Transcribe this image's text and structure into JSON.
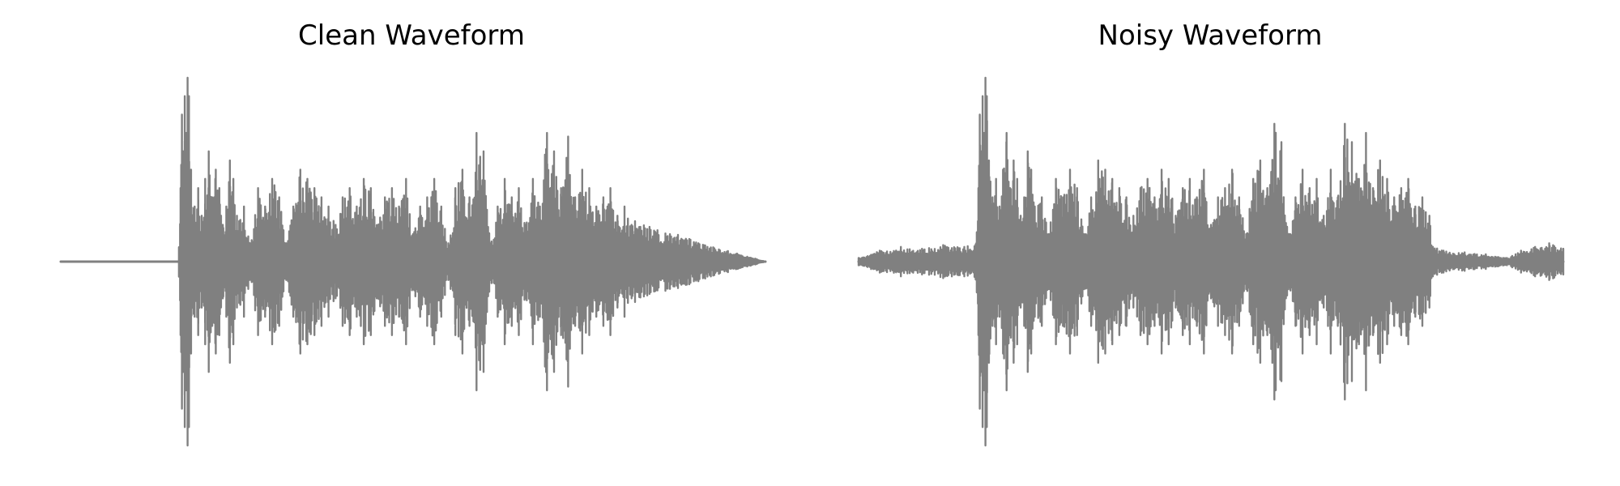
{
  "chart_data": [
    {
      "type": "line",
      "title": "Clean Waveform",
      "xlabel": "",
      "ylabel": "",
      "ylim": [
        -1.0,
        1.0
      ],
      "grid": false,
      "axes_visible": false,
      "color": "#808080",
      "series": [
        {
          "x": [
            0.0,
            0.167,
            0.17,
            0.172,
            0.174,
            0.176,
            0.178,
            0.18,
            0.182,
            0.185,
            0.19,
            0.195,
            0.2,
            0.205,
            0.21,
            0.215,
            0.22,
            0.225,
            0.23,
            0.235,
            0.24,
            0.245,
            0.25,
            0.26,
            0.27,
            0.28,
            0.29,
            0.3,
            0.31,
            0.32,
            0.33,
            0.34,
            0.35,
            0.36,
            0.37,
            0.38,
            0.39,
            0.4,
            0.41,
            0.42,
            0.43,
            0.44,
            0.45,
            0.46,
            0.47,
            0.48,
            0.49,
            0.5,
            0.51,
            0.52,
            0.53,
            0.54,
            0.55,
            0.56,
            0.57,
            0.58,
            0.59,
            0.6,
            0.61,
            0.62,
            0.63,
            0.64,
            0.65,
            0.66,
            0.67,
            0.68,
            0.69,
            0.7,
            0.71,
            0.72,
            0.73,
            0.74,
            0.75,
            0.76,
            0.77,
            0.78,
            0.79,
            0.8,
            0.81,
            0.815,
            1.0
          ],
          "envelope": [
            0.0,
            0.0,
            0.4,
            0.8,
            0.6,
            0.9,
            0.7,
            1.0,
            0.9,
            0.5,
            0.3,
            0.4,
            0.25,
            0.45,
            0.6,
            0.35,
            0.5,
            0.4,
            0.2,
            0.3,
            0.55,
            0.45,
            0.25,
            0.3,
            0.1,
            0.4,
            0.3,
            0.45,
            0.35,
            0.1,
            0.3,
            0.5,
            0.45,
            0.4,
            0.35,
            0.3,
            0.2,
            0.35,
            0.4,
            0.3,
            0.45,
            0.4,
            0.2,
            0.35,
            0.4,
            0.3,
            0.45,
            0.15,
            0.3,
            0.35,
            0.45,
            0.3,
            0.1,
            0.4,
            0.5,
            0.35,
            0.7,
            0.6,
            0.1,
            0.3,
            0.45,
            0.35,
            0.4,
            0.2,
            0.45,
            0.3,
            0.7,
            0.6,
            0.4,
            0.68,
            0.35,
            0.5,
            0.4,
            0.3,
            0.35,
            0.4,
            0.25,
            0.3,
            0.2,
            0.22,
            0.0
          ]
        }
      ]
    },
    {
      "type": "line",
      "title": "Noisy Waveform",
      "xlabel": "",
      "ylabel": "",
      "ylim": [
        -1.0,
        1.0
      ],
      "grid": false,
      "axes_visible": false,
      "color": "#808080",
      "series": [
        {
          "x": [
            0.0,
            0.03,
            0.06,
            0.09,
            0.12,
            0.15,
            0.167,
            0.17,
            0.172,
            0.174,
            0.176,
            0.178,
            0.18,
            0.182,
            0.185,
            0.19,
            0.195,
            0.2,
            0.205,
            0.21,
            0.215,
            0.22,
            0.225,
            0.23,
            0.235,
            0.24,
            0.245,
            0.25,
            0.26,
            0.27,
            0.28,
            0.29,
            0.3,
            0.31,
            0.32,
            0.33,
            0.34,
            0.35,
            0.36,
            0.37,
            0.38,
            0.39,
            0.4,
            0.41,
            0.42,
            0.43,
            0.44,
            0.45,
            0.46,
            0.47,
            0.48,
            0.49,
            0.5,
            0.51,
            0.52,
            0.53,
            0.54,
            0.55,
            0.56,
            0.57,
            0.58,
            0.59,
            0.6,
            0.61,
            0.62,
            0.63,
            0.64,
            0.65,
            0.66,
            0.67,
            0.68,
            0.69,
            0.7,
            0.71,
            0.72,
            0.73,
            0.74,
            0.75,
            0.76,
            0.77,
            0.78,
            0.79,
            0.8,
            0.81,
            0.815,
            0.83,
            0.86,
            0.89,
            0.92,
            0.94,
            0.96,
            0.98,
            1.0
          ],
          "envelope": [
            0.02,
            0.06,
            0.08,
            0.07,
            0.09,
            0.08,
            0.1,
            0.4,
            0.8,
            0.6,
            0.9,
            0.7,
            1.0,
            0.9,
            0.55,
            0.35,
            0.45,
            0.3,
            0.5,
            0.7,
            0.4,
            0.55,
            0.45,
            0.25,
            0.35,
            0.6,
            0.5,
            0.3,
            0.35,
            0.15,
            0.45,
            0.35,
            0.5,
            0.4,
            0.15,
            0.35,
            0.55,
            0.5,
            0.45,
            0.4,
            0.35,
            0.25,
            0.4,
            0.45,
            0.35,
            0.5,
            0.45,
            0.25,
            0.4,
            0.45,
            0.35,
            0.5,
            0.2,
            0.35,
            0.4,
            0.5,
            0.35,
            0.15,
            0.45,
            0.55,
            0.4,
            0.75,
            0.65,
            0.15,
            0.35,
            0.5,
            0.4,
            0.45,
            0.25,
            0.5,
            0.35,
            0.75,
            0.65,
            0.45,
            0.7,
            0.4,
            0.55,
            0.45,
            0.35,
            0.4,
            0.45,
            0.3,
            0.35,
            0.25,
            0.08,
            0.06,
            0.05,
            0.04,
            0.02,
            0.06,
            0.08,
            0.1,
            0.07
          ]
        }
      ]
    }
  ]
}
